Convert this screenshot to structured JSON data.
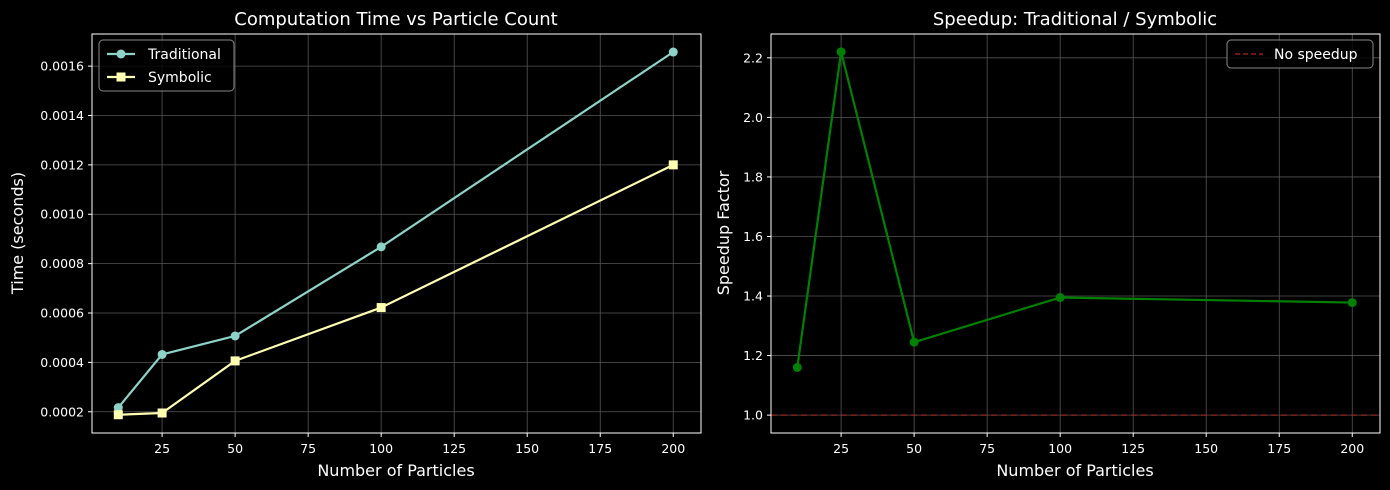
{
  "figure": {
    "background": "#000000",
    "foreground": "#ffffff",
    "grid_color": "#555555"
  },
  "chart_data": [
    {
      "type": "line",
      "title": "Computation Time vs Particle Count",
      "xlabel": "Number of Particles",
      "ylabel": "Time (seconds)",
      "xlim": [
        1,
        209.5
      ],
      "ylim": [
        0.000114,
        0.00173
      ],
      "xticks": [
        25,
        50,
        75,
        100,
        125,
        150,
        175,
        200
      ],
      "yticks": [
        0.0002,
        0.0004,
        0.0006,
        0.0008,
        0.001,
        0.0012,
        0.0014,
        0.0016
      ],
      "ytick_labels": [
        "0.0002",
        "0.0004",
        "0.0006",
        "0.0008",
        "0.0010",
        "0.0012",
        "0.0014",
        "0.0016"
      ],
      "grid": true,
      "legend": "upper left",
      "x": [
        10,
        25,
        50,
        100,
        200
      ],
      "series": [
        {
          "name": "Traditional",
          "marker": "circle",
          "color": "#8dd3c7",
          "values": [
            0.000217,
            0.000432,
            0.000507,
            0.000868,
            0.001657
          ]
        },
        {
          "name": "Symbolic",
          "marker": "square",
          "color": "#ffffb3",
          "values": [
            0.000188,
            0.000195,
            0.000406,
            0.000622,
            0.0012
          ]
        }
      ]
    },
    {
      "type": "line",
      "title": "Speedup: Traditional / Symbolic",
      "xlabel": "Number of Particles",
      "ylabel": "Speedup Factor",
      "xlim": [
        1,
        209.5
      ],
      "ylim": [
        0.94,
        2.28
      ],
      "xticks": [
        25,
        50,
        75,
        100,
        125,
        150,
        175,
        200
      ],
      "yticks": [
        1.0,
        1.2,
        1.4,
        1.6,
        1.8,
        2.0,
        2.2
      ],
      "ytick_labels": [
        "1.0",
        "1.2",
        "1.4",
        "1.6",
        "1.8",
        "2.0",
        "2.2"
      ],
      "grid": true,
      "legend": "upper right",
      "x": [
        10,
        25,
        50,
        100,
        200
      ],
      "series": [
        {
          "name": "",
          "marker": "circle",
          "color": "#008000",
          "values": [
            1.16,
            2.22,
            1.245,
            1.395,
            1.378
          ]
        }
      ],
      "reference_line": {
        "name": "No speedup",
        "y": 1.0,
        "color": "#b22222",
        "style": "dashed"
      }
    }
  ]
}
